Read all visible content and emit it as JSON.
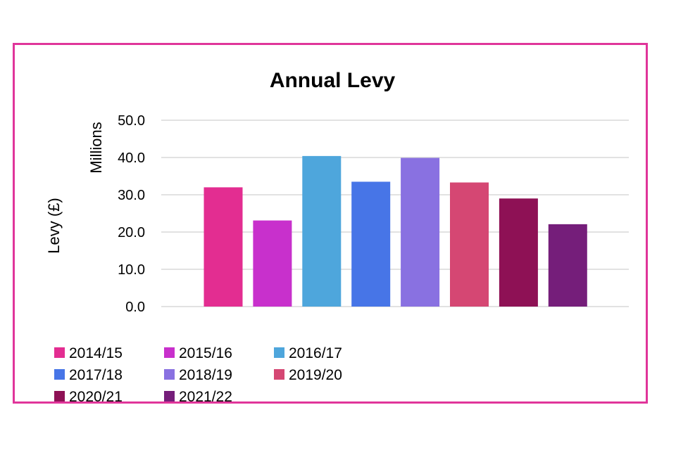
{
  "chart_data": {
    "type": "bar",
    "title": "Annual Levy",
    "ylabel": "Levy (£)",
    "yunit_label": "Millions",
    "ylim": [
      0,
      50
    ],
    "yticks": [
      "0.0",
      "10.0",
      "20.0",
      "30.0",
      "40.0",
      "50.0"
    ],
    "grid": true,
    "legend_position": "bottom-left",
    "categories": [
      "2014/15",
      "2015/16",
      "2016/17",
      "2017/18",
      "2018/19",
      "2019/20",
      "2020/21",
      "2021/22"
    ],
    "values": [
      32.0,
      23.1,
      40.4,
      33.5,
      39.9,
      33.3,
      29.0,
      22.1
    ],
    "colors": [
      "#e32d91",
      "#c830cc",
      "#4ea6dc",
      "#4775e7",
      "#8971e1",
      "#d54773",
      "#8e1155",
      "#751e7a"
    ]
  },
  "frame": {
    "border_color": "#e0359a"
  }
}
